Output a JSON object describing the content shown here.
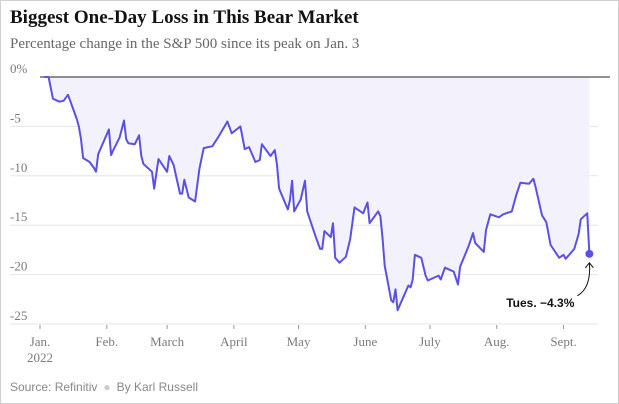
{
  "title": "Biggest One-Day Loss in This Bear Market",
  "subtitle": "Percentage change in the S&P 500 since its peak on Jan. 3",
  "source": "Source: Refinitiv",
  "byline": "By Karl Russell",
  "colors": {
    "line": "#5b50e6",
    "fill": "#f3f1fc",
    "zero_line": "#222222"
  },
  "chart_data": {
    "type": "area",
    "ylim": [
      -25,
      0
    ],
    "y_ticks": [
      0,
      -5,
      -10,
      -15,
      -20,
      -25
    ],
    "y_tick_labels": [
      "0%",
      "-5",
      "-10",
      "-15",
      "-20",
      "-25"
    ],
    "x_ticks": [
      {
        "date": "2022-01-01",
        "label": "Jan.",
        "sub": "2022"
      },
      {
        "date": "2022-02-01",
        "label": "Feb.",
        "sub": ""
      },
      {
        "date": "2022-03-01",
        "label": "March",
        "sub": ""
      },
      {
        "date": "2022-04-01",
        "label": "April",
        "sub": ""
      },
      {
        "date": "2022-05-01",
        "label": "May",
        "sub": ""
      },
      {
        "date": "2022-06-01",
        "label": "June",
        "sub": ""
      },
      {
        "date": "2022-07-01",
        "label": "July",
        "sub": ""
      },
      {
        "date": "2022-08-01",
        "label": "Aug.",
        "sub": ""
      },
      {
        "date": "2022-09-01",
        "label": "Sept.",
        "sub": ""
      }
    ],
    "xlim": [
      "2022-01-01",
      "2022-09-17"
    ],
    "annotation": {
      "text": "Tues. −4.3%",
      "date": "2022-09-13",
      "value": -17.9
    },
    "series": [
      {
        "dates": [
          "2022-01-03",
          "2022-01-05",
          "2022-01-07",
          "2022-01-10",
          "2022-01-12",
          "2022-01-14",
          "2022-01-18",
          "2022-01-19",
          "2022-01-20",
          "2022-01-21",
          "2022-01-24",
          "2022-01-26",
          "2022-01-27",
          "2022-01-28",
          "2022-02-01",
          "2022-02-02",
          "2022-02-03",
          "2022-02-04",
          "2022-02-07",
          "2022-02-09",
          "2022-02-10",
          "2022-02-11",
          "2022-02-14",
          "2022-02-16",
          "2022-02-17",
          "2022-02-18",
          "2022-02-22",
          "2022-02-23",
          "2022-02-24",
          "2022-02-25",
          "2022-03-01",
          "2022-03-02",
          "2022-03-04",
          "2022-03-07",
          "2022-03-08",
          "2022-03-09",
          "2022-03-11",
          "2022-03-14",
          "2022-03-16",
          "2022-03-18",
          "2022-03-22",
          "2022-03-25",
          "2022-03-29",
          "2022-03-31",
          "2022-04-04",
          "2022-04-06",
          "2022-04-08",
          "2022-04-11",
          "2022-04-13",
          "2022-04-14",
          "2022-04-18",
          "2022-04-20",
          "2022-04-21",
          "2022-04-22",
          "2022-04-26",
          "2022-04-27",
          "2022-04-28",
          "2022-04-29",
          "2022-05-02",
          "2022-05-04",
          "2022-05-05",
          "2022-05-09",
          "2022-05-11",
          "2022-05-12",
          "2022-05-13",
          "2022-05-16",
          "2022-05-17",
          "2022-05-18",
          "2022-05-20",
          "2022-05-23",
          "2022-05-25",
          "2022-05-27",
          "2022-05-31",
          "2022-06-02",
          "2022-06-03",
          "2022-06-07",
          "2022-06-08",
          "2022-06-09",
          "2022-06-10",
          "2022-06-13",
          "2022-06-14",
          "2022-06-15",
          "2022-06-16",
          "2022-06-17",
          "2022-06-21",
          "2022-06-22",
          "2022-06-23",
          "2022-06-24",
          "2022-06-27",
          "2022-06-29",
          "2022-06-30",
          "2022-07-05",
          "2022-07-06",
          "2022-07-08",
          "2022-07-12",
          "2022-07-14",
          "2022-07-15",
          "2022-07-19",
          "2022-07-21",
          "2022-07-22",
          "2022-07-26",
          "2022-07-27",
          "2022-07-29",
          "2022-08-02",
          "2022-08-04",
          "2022-08-08",
          "2022-08-10",
          "2022-08-12",
          "2022-08-16",
          "2022-08-18",
          "2022-08-19",
          "2022-08-22",
          "2022-08-24",
          "2022-08-26",
          "2022-08-30",
          "2022-09-01",
          "2022-09-02",
          "2022-09-06",
          "2022-09-08",
          "2022-09-09",
          "2022-09-12",
          "2022-09-13"
        ],
        "values": [
          0,
          0,
          -2.2,
          -2.5,
          -2.4,
          -1.8,
          -4.2,
          -5.0,
          -6.2,
          -8.2,
          -8.6,
          -9.2,
          -9.6,
          -7.8,
          -5.8,
          -5.3,
          -7.9,
          -7.4,
          -6.1,
          -4.4,
          -6.3,
          -6.7,
          -6.8,
          -5.9,
          -8.0,
          -8.8,
          -9.6,
          -11.3,
          -9.8,
          -8.3,
          -9.6,
          -8.0,
          -8.9,
          -11.8,
          -11.8,
          -10.4,
          -12.2,
          -12.6,
          -9.3,
          -7.2,
          -7.0,
          -6.0,
          -4.5,
          -5.7,
          -5.0,
          -7.3,
          -7.1,
          -8.6,
          -8.4,
          -6.8,
          -8.0,
          -7.4,
          -8.9,
          -11.3,
          -13.4,
          -12.5,
          -10.5,
          -13.6,
          -12.4,
          -10.5,
          -13.6,
          -16.2,
          -17.4,
          -17.4,
          -15.6,
          -16.2,
          -14.8,
          -18.3,
          -18.8,
          -18.2,
          -16.4,
          -13.2,
          -13.8,
          -12.7,
          -14.8,
          -13.6,
          -14.1,
          -16.4,
          -19.1,
          -22.6,
          -22.8,
          -21.5,
          -23.6,
          -23.1,
          -21.1,
          -21.3,
          -20.5,
          -18.0,
          -18.3,
          -20.1,
          -20.6,
          -20.1,
          -20.5,
          -19.3,
          -19.7,
          -21.0,
          -19.2,
          -17.1,
          -15.8,
          -16.8,
          -17.7,
          -15.5,
          -13.9,
          -14.2,
          -13.9,
          -13.6,
          -12.0,
          -10.7,
          -10.8,
          -10.3,
          -11.1,
          -14.0,
          -14.7,
          -17.0,
          -18.3,
          -18.0,
          -18.4,
          -17.4,
          -15.9,
          -14.4,
          -13.8,
          -17.9
        ]
      }
    ]
  }
}
